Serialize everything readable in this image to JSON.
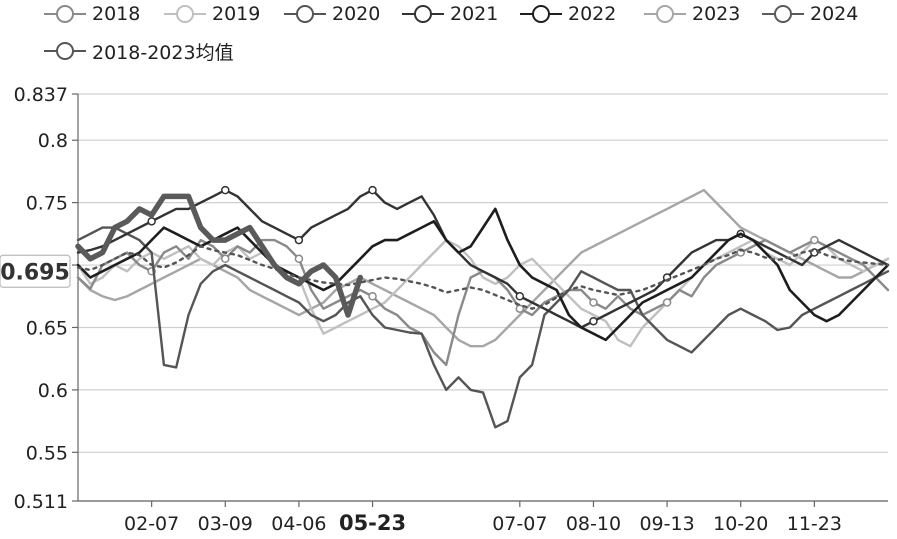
{
  "chart_data": {
    "type": "line",
    "title": "",
    "xlabel": "",
    "ylabel": "",
    "ylim": [
      0.511,
      0.837
    ],
    "y_ticks": [
      "0.837",
      "0.8",
      "0.75",
      "0.7",
      "0.65",
      "0.6",
      "0.55",
      "0.511"
    ],
    "y_tick_values": [
      0.837,
      0.8,
      0.75,
      0.7,
      0.65,
      0.6,
      0.55,
      0.511
    ],
    "y_highlight": {
      "label": "0.695",
      "value": 0.695
    },
    "x_tick_labels": [
      "02-07",
      "03-09",
      "04-06",
      "05-23",
      "07-07",
      "08-10",
      "09-13",
      "10-20",
      "11-23"
    ],
    "x_tick_index": [
      6,
      12,
      18,
      24,
      36,
      42,
      48,
      54,
      60
    ],
    "x_highlight": "05-23",
    "n_points": 67,
    "legend_placement": "top-left",
    "grid": true,
    "series": [
      {
        "name": "2018",
        "color": "#8a8a8a",
        "width": 2.4,
        "values": [
          0.69,
          0.681,
          0.7,
          0.705,
          0.71,
          0.7,
          0.695,
          0.71,
          0.715,
          0.705,
          0.72,
          0.715,
          0.705,
          0.715,
          0.71,
          0.72,
          0.72,
          0.715,
          0.705,
          0.68,
          0.665,
          0.67,
          0.675,
          0.68,
          0.675,
          0.665,
          0.66,
          0.65,
          0.645,
          0.63,
          0.62,
          0.66,
          0.69,
          0.695,
          0.69,
          0.68,
          0.665,
          0.66,
          0.67,
          0.675,
          0.68,
          0.68,
          0.67,
          0.665,
          0.675,
          0.665,
          0.66,
          0.665,
          0.67,
          0.68,
          0.675,
          0.69,
          0.7,
          0.705,
          0.71,
          0.715,
          0.72,
          0.715,
          0.71,
          0.715,
          0.72,
          0.715,
          0.71,
          0.705,
          0.7,
          0.69,
          0.68
        ]
      },
      {
        "name": "2019",
        "color": "#c0c0c0",
        "width": 2.4,
        "values": [
          0.7,
          0.685,
          0.69,
          0.7,
          0.695,
          0.705,
          0.71,
          0.705,
          0.71,
          0.715,
          0.705,
          0.7,
          0.71,
          0.715,
          0.705,
          0.71,
          0.7,
          0.695,
          0.69,
          0.665,
          0.645,
          0.65,
          0.655,
          0.66,
          0.665,
          0.67,
          0.68,
          0.69,
          0.7,
          0.71,
          0.72,
          0.715,
          0.705,
          0.69,
          0.685,
          0.69,
          0.7,
          0.705,
          0.695,
          0.685,
          0.675,
          0.665,
          0.66,
          0.655,
          0.64,
          0.635,
          0.65,
          0.66,
          0.67,
          0.68,
          0.69,
          0.7,
          0.705,
          0.71,
          0.715,
          0.72,
          0.71,
          0.705,
          0.7,
          0.71,
          0.72,
          0.715,
          0.705,
          0.7,
          0.695,
          0.7,
          0.705
        ]
      },
      {
        "name": "2020",
        "color": "#555555",
        "width": 2.4,
        "values": [
          0.72,
          0.725,
          0.73,
          0.73,
          0.725,
          0.72,
          0.71,
          0.62,
          0.618,
          0.66,
          0.685,
          0.695,
          0.7,
          0.695,
          0.69,
          0.685,
          0.68,
          0.675,
          0.67,
          0.66,
          0.655,
          0.66,
          0.67,
          0.675,
          0.66,
          0.65,
          0.648,
          0.646,
          0.645,
          0.62,
          0.6,
          0.61,
          0.6,
          0.598,
          0.57,
          0.575,
          0.61,
          0.62,
          0.66,
          0.67,
          0.68,
          0.695,
          0.69,
          0.685,
          0.68,
          0.68,
          0.66,
          0.65,
          0.64,
          0.635,
          0.63,
          0.64,
          0.65,
          0.66,
          0.665,
          0.66,
          0.655,
          0.648,
          0.65,
          0.66,
          0.665,
          0.67,
          0.675,
          0.68,
          0.685,
          0.69,
          0.695
        ]
      },
      {
        "name": "2021",
        "color": "#333333",
        "width": 2.4,
        "values": [
          0.71,
          0.712,
          0.715,
          0.72,
          0.725,
          0.73,
          0.735,
          0.74,
          0.745,
          0.745,
          0.75,
          0.755,
          0.76,
          0.755,
          0.745,
          0.735,
          0.73,
          0.725,
          0.72,
          0.73,
          0.735,
          0.74,
          0.745,
          0.755,
          0.76,
          0.75,
          0.745,
          0.75,
          0.755,
          0.74,
          0.72,
          0.71,
          0.7,
          0.695,
          0.69,
          0.685,
          0.675,
          0.67,
          0.665,
          0.66,
          0.655,
          0.65,
          0.655,
          0.66,
          0.665,
          0.67,
          0.675,
          0.68,
          0.69,
          0.7,
          0.71,
          0.715,
          0.72,
          0.72,
          0.725,
          0.72,
          0.715,
          0.71,
          0.705,
          0.7,
          0.71,
          0.715,
          0.72,
          0.715,
          0.71,
          0.705,
          0.7
        ]
      },
      {
        "name": "2022",
        "color": "#1e1e1e",
        "width": 2.6,
        "values": [
          0.7,
          0.69,
          0.695,
          0.7,
          0.705,
          0.71,
          0.72,
          0.73,
          0.725,
          0.72,
          0.715,
          0.72,
          0.725,
          0.73,
          0.72,
          0.71,
          0.7,
          0.695,
          0.69,
          0.685,
          0.68,
          0.685,
          0.695,
          0.705,
          0.715,
          0.72,
          0.72,
          0.725,
          0.73,
          0.735,
          0.72,
          0.71,
          0.715,
          0.73,
          0.745,
          0.72,
          0.7,
          0.69,
          0.685,
          0.68,
          0.66,
          0.65,
          0.645,
          0.64,
          0.65,
          0.66,
          0.67,
          0.675,
          0.68,
          0.685,
          0.69,
          0.7,
          0.71,
          0.72,
          0.725,
          0.72,
          0.71,
          0.7,
          0.68,
          0.67,
          0.66,
          0.655,
          0.66,
          0.67,
          0.68,
          0.69,
          0.7
        ]
      },
      {
        "name": "2023",
        "color": "#a6a6a6",
        "width": 2.4,
        "values": [
          0.69,
          0.68,
          0.675,
          0.672,
          0.675,
          0.68,
          0.685,
          0.69,
          0.695,
          0.7,
          0.705,
          0.7,
          0.695,
          0.69,
          0.68,
          0.675,
          0.67,
          0.665,
          0.66,
          0.665,
          0.67,
          0.68,
          0.685,
          0.69,
          0.685,
          0.68,
          0.675,
          0.67,
          0.665,
          0.66,
          0.65,
          0.64,
          0.635,
          0.635,
          0.64,
          0.65,
          0.66,
          0.67,
          0.68,
          0.69,
          0.7,
          0.71,
          0.715,
          0.72,
          0.725,
          0.73,
          0.735,
          0.74,
          0.745,
          0.75,
          0.755,
          0.76,
          0.75,
          0.74,
          0.73,
          0.725,
          0.72,
          0.715,
          0.71,
          0.705,
          0.7,
          0.695,
          0.69,
          0.69,
          0.695,
          0.7,
          0.705
        ]
      },
      {
        "name": "2024",
        "color": "#5a5a5a",
        "width": 5.5,
        "values": [
          0.715,
          0.705,
          0.71,
          0.73,
          0.735,
          0.745,
          0.74,
          0.755,
          0.755,
          0.755,
          0.73,
          0.72,
          0.72,
          0.725,
          0.73,
          0.715,
          0.7,
          0.69,
          0.685,
          0.695,
          0.7,
          0.69,
          0.66,
          0.69
        ]
      },
      {
        "name": "2018-2023均值",
        "color": "#555555",
        "width": 2.4,
        "dashed": true,
        "values": [
          0.698,
          0.696,
          0.7,
          0.705,
          0.71,
          0.708,
          0.7,
          0.698,
          0.702,
          0.708,
          0.715,
          0.712,
          0.71,
          0.708,
          0.704,
          0.7,
          0.697,
          0.693,
          0.69,
          0.688,
          0.686,
          0.685,
          0.684,
          0.686,
          0.688,
          0.69,
          0.689,
          0.687,
          0.685,
          0.682,
          0.678,
          0.68,
          0.682,
          0.68,
          0.676,
          0.672,
          0.668,
          0.665,
          0.668,
          0.674,
          0.68,
          0.683,
          0.68,
          0.678,
          0.676,
          0.678,
          0.68,
          0.684,
          0.688,
          0.692,
          0.696,
          0.7,
          0.705,
          0.708,
          0.712,
          0.71,
          0.706,
          0.704,
          0.706,
          0.71,
          0.712,
          0.708,
          0.705,
          0.703,
          0.702,
          0.701,
          0.7
        ]
      }
    ]
  }
}
